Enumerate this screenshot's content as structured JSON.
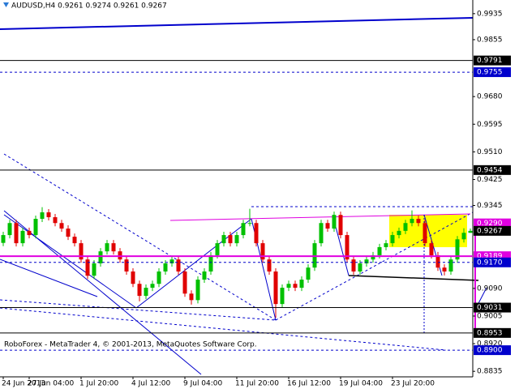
{
  "chart_data": {
    "type": "candlestick",
    "title": "AUDUSD,H4  0.9261 0.9274 0.9261 0.9267",
    "footer": "RoboForex - MetaTrader 4, © 2001-2013, MetaQuotes Software Corp.",
    "up_color": "#00c000",
    "down_color": "#e00000",
    "ylim": [
      0.8818,
      0.9977
    ],
    "yticks": [
      {
        "value": 0.9935,
        "label": "0.9935"
      },
      {
        "value": 0.9855,
        "label": "0.9855"
      },
      {
        "value": 0.968,
        "label": "0.9680"
      },
      {
        "value": 0.9595,
        "label": "0.9595"
      },
      {
        "value": 0.951,
        "label": "0.9510"
      },
      {
        "value": 0.9425,
        "label": "0.9425"
      },
      {
        "value": 0.9345,
        "label": "0.9345"
      },
      {
        "value": 0.909,
        "label": "0.9090"
      },
      {
        "value": 0.9005,
        "label": "0.9005"
      },
      {
        "value": 0.892,
        "label": "0.8920"
      },
      {
        "value": 0.8835,
        "label": "0.8835"
      }
    ],
    "levels": [
      {
        "value": 0.9791,
        "label": "0.9791",
        "color": "#000000",
        "style": "solid"
      },
      {
        "value": 0.9755,
        "label": "0.9755",
        "color": "#0000cc",
        "style": "dashed"
      },
      {
        "value": 0.9454,
        "label": "0.9454",
        "color": "#000000",
        "style": "solid"
      },
      {
        "value": 0.929,
        "label": "0.9290",
        "color": "#e000e0",
        "style": "none"
      },
      {
        "value": 0.9267,
        "label": "0.9267",
        "color": "#000000",
        "style": "none"
      },
      {
        "value": 0.9189,
        "label": "0.9189",
        "color": "#e000e0",
        "style": "solid"
      },
      {
        "value": 0.917,
        "label": "0.9170",
        "color": "#0000cc",
        "style": "dashed"
      },
      {
        "value": 0.9031,
        "label": "0.9031",
        "color": "#000000",
        "style": "solid"
      },
      {
        "value": 0.8953,
        "label": "0.8953",
        "color": "#000000",
        "style": "solid"
      },
      {
        "value": 0.89,
        "label": "0.8900",
        "color": "#0000cc",
        "style": "dashed"
      }
    ],
    "categories": [
      "24 Jun 2013",
      null,
      null,
      null,
      "27 Jun 04:00",
      null,
      null,
      null,
      null,
      null,
      null,
      null,
      "1 Jul 20:00",
      null,
      null,
      null,
      null,
      null,
      null,
      null,
      "4 Jul 12:00",
      null,
      null,
      null,
      null,
      null,
      null,
      null,
      "9 Jul 04:00",
      null,
      null,
      null,
      null,
      null,
      null,
      null,
      "11 Jul 20:00",
      null,
      null,
      null,
      null,
      null,
      null,
      null,
      "16 Jul 12:00",
      null,
      null,
      null,
      null,
      null,
      null,
      null,
      "19 Jul 04:00",
      null,
      null,
      null,
      null,
      null,
      null,
      null,
      "23 Jul 20:00",
      null,
      null,
      null,
      null,
      null,
      null,
      null,
      null,
      null,
      null,
      null,
      null
    ],
    "candles": [
      [
        0.923,
        0.9264,
        0.922,
        0.9254
      ],
      [
        0.9254,
        0.9301,
        0.9244,
        0.9291
      ],
      [
        0.9291,
        0.9301,
        0.9219,
        0.9229
      ],
      [
        0.9229,
        0.9277,
        0.9219,
        0.9267
      ],
      [
        0.9267,
        0.9277,
        0.9244,
        0.9254
      ],
      [
        0.9254,
        0.9314,
        0.9244,
        0.9304
      ],
      [
        0.9304,
        0.934,
        0.9294,
        0.9324
      ],
      [
        0.9324,
        0.9334,
        0.9299,
        0.9309
      ],
      [
        0.9309,
        0.9319,
        0.9281,
        0.9291
      ],
      [
        0.9291,
        0.9301,
        0.9264,
        0.9274
      ],
      [
        0.9274,
        0.9284,
        0.9239,
        0.9249
      ],
      [
        0.9249,
        0.9259,
        0.9219,
        0.9229
      ],
      [
        0.9229,
        0.9239,
        0.9169,
        0.9179
      ],
      [
        0.9179,
        0.9189,
        0.9119,
        0.9129
      ],
      [
        0.9129,
        0.9177,
        0.9119,
        0.9167
      ],
      [
        0.9167,
        0.9214,
        0.9157,
        0.9204
      ],
      [
        0.9204,
        0.9239,
        0.9194,
        0.9229
      ],
      [
        0.9229,
        0.9239,
        0.9194,
        0.9204
      ],
      [
        0.9204,
        0.9214,
        0.9169,
        0.9179
      ],
      [
        0.9179,
        0.9189,
        0.9132,
        0.9142
      ],
      [
        0.9142,
        0.9152,
        0.9094,
        0.9104
      ],
      [
        0.9104,
        0.9114,
        0.905,
        0.9067
      ],
      [
        0.9067,
        0.9102,
        0.9057,
        0.9092
      ],
      [
        0.9092,
        0.9114,
        0.9082,
        0.9104
      ],
      [
        0.9104,
        0.9152,
        0.9094,
        0.9142
      ],
      [
        0.9142,
        0.9177,
        0.9132,
        0.9167
      ],
      [
        0.9167,
        0.9189,
        0.9157,
        0.9179
      ],
      [
        0.9179,
        0.9189,
        0.9132,
        0.9142
      ],
      [
        0.9142,
        0.9152,
        0.9064,
        0.9074
      ],
      [
        0.9074,
        0.9084,
        0.904,
        0.9054
      ],
      [
        0.9054,
        0.9127,
        0.9044,
        0.9117
      ],
      [
        0.9117,
        0.9152,
        0.9107,
        0.9142
      ],
      [
        0.9142,
        0.9202,
        0.9132,
        0.9192
      ],
      [
        0.9192,
        0.9239,
        0.9182,
        0.9229
      ],
      [
        0.9229,
        0.9264,
        0.9219,
        0.9254
      ],
      [
        0.9254,
        0.9264,
        0.9219,
        0.9229
      ],
      [
        0.9229,
        0.9264,
        0.9219,
        0.9254
      ],
      [
        0.9254,
        0.9301,
        0.9244,
        0.9291
      ],
      [
        0.9291,
        0.9335,
        0.9281,
        0.9291
      ],
      [
        0.9291,
        0.9301,
        0.9219,
        0.9229
      ],
      [
        0.9229,
        0.9239,
        0.9169,
        0.9179
      ],
      [
        0.9179,
        0.9189,
        0.9132,
        0.9142
      ],
      [
        0.9142,
        0.9152,
        0.9,
        0.9042
      ],
      [
        0.9042,
        0.9102,
        0.9032,
        0.9092
      ],
      [
        0.9092,
        0.9114,
        0.9082,
        0.9104
      ],
      [
        0.9104,
        0.9114,
        0.9082,
        0.9092
      ],
      [
        0.9092,
        0.9127,
        0.9082,
        0.9117
      ],
      [
        0.9117,
        0.9164,
        0.9107,
        0.9154
      ],
      [
        0.9154,
        0.9239,
        0.9144,
        0.9229
      ],
      [
        0.9229,
        0.9301,
        0.9219,
        0.9291
      ],
      [
        0.9291,
        0.9301,
        0.9264,
        0.9274
      ],
      [
        0.9274,
        0.9326,
        0.9264,
        0.9316
      ],
      [
        0.9316,
        0.9326,
        0.9244,
        0.9254
      ],
      [
        0.9254,
        0.9264,
        0.9169,
        0.9179
      ],
      [
        0.9179,
        0.9189,
        0.9132,
        0.9142
      ],
      [
        0.9142,
        0.9177,
        0.9132,
        0.9167
      ],
      [
        0.9167,
        0.9189,
        0.9157,
        0.9179
      ],
      [
        0.9179,
        0.9202,
        0.9169,
        0.9192
      ],
      [
        0.9192,
        0.9227,
        0.9182,
        0.9217
      ],
      [
        0.9217,
        0.9239,
        0.9207,
        0.9229
      ],
      [
        0.9229,
        0.9264,
        0.9219,
        0.9254
      ],
      [
        0.9254,
        0.9277,
        0.9244,
        0.9267
      ],
      [
        0.9267,
        0.9301,
        0.9257,
        0.9291
      ],
      [
        0.9291,
        0.933,
        0.9281,
        0.9304
      ],
      [
        0.9304,
        0.9314,
        0.9281,
        0.9291
      ],
      [
        0.9291,
        0.9301,
        0.9219,
        0.9229
      ],
      [
        0.9229,
        0.9239,
        0.9182,
        0.9192
      ],
      [
        0.9192,
        0.9202,
        0.9144,
        0.9154
      ],
      [
        0.9154,
        0.9164,
        0.913,
        0.9142
      ],
      [
        0.9142,
        0.9189,
        0.9132,
        0.9179
      ],
      [
        0.9179,
        0.9251,
        0.9169,
        0.9241
      ],
      [
        0.9241,
        0.9275,
        0.9231,
        0.9261
      ],
      [
        0.9261,
        0.9274,
        0.9261,
        0.9267
      ]
    ]
  }
}
